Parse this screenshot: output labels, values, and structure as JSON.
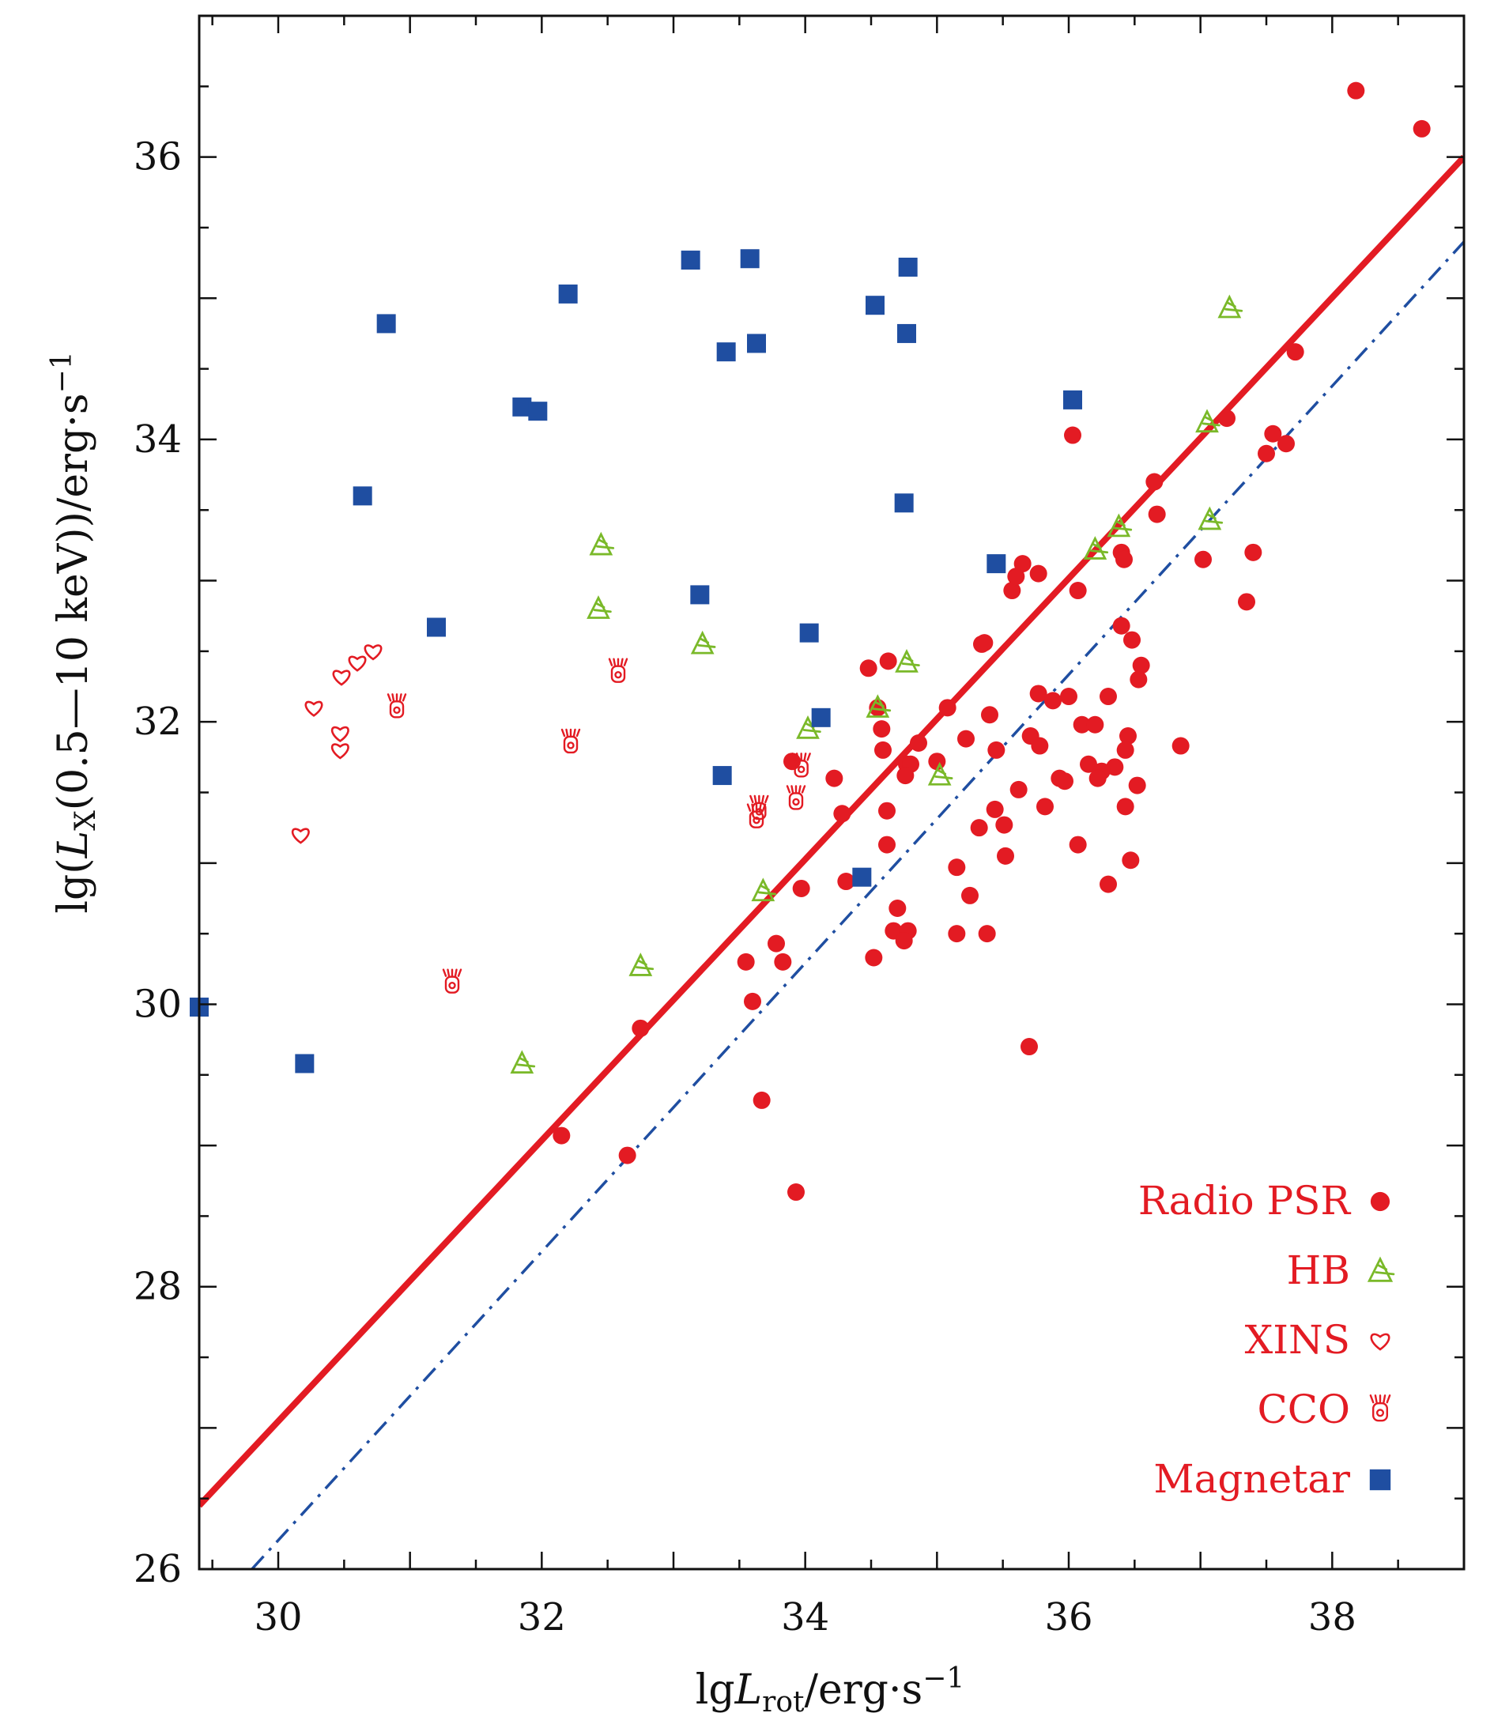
{
  "chart_data": {
    "type": "scatter",
    "xlabel_parts": {
      "lg": "lg",
      "L": "L",
      "sub": "rot",
      "unit": "/erg·s",
      "sup": "−1"
    },
    "ylabel_parts": {
      "pre": "lg(",
      "L": "L",
      "sub": "X",
      "mid": "(0.5—10 keV))/erg·s",
      "sup": "−1"
    },
    "xlim": [
      29.4,
      39.0
    ],
    "ylim": [
      26,
      37
    ],
    "x_ticks": [
      "30",
      "32",
      "34",
      "36",
      "38"
    ],
    "x_tick_values": [
      30,
      32,
      34,
      36,
      38
    ],
    "y_ticks": [
      "26",
      "28",
      "30",
      "32",
      "34",
      "36"
    ],
    "y_tick_values": [
      26,
      28,
      30,
      32,
      34,
      36
    ],
    "lines": [
      {
        "name": "fit",
        "style": "solid",
        "color": "#e31b23",
        "x": [
          29.4,
          39.0
        ],
        "y": [
          26.45,
          36.0
        ]
      },
      {
        "name": "reference",
        "style": "dash-dot",
        "color": "#1f4ea1",
        "x": [
          29.8,
          39.0
        ],
        "y": [
          26.0,
          35.4
        ]
      }
    ],
    "legend": {
      "position": "bottom-right",
      "entries": [
        {
          "label": "Radio PSR",
          "marker": "circle",
          "color": "#e31b23"
        },
        {
          "label": "HB",
          "marker": "hb",
          "color": "#7ab929"
        },
        {
          "label": "XINS",
          "marker": "heart",
          "color": "#e31b23"
        },
        {
          "label": "CCO",
          "marker": "cco",
          "color": "#e31b23"
        },
        {
          "label": "Magnetar",
          "marker": "square",
          "color": "#1f4ea1"
        }
      ]
    },
    "series": [
      {
        "name": "Radio PSR",
        "marker": "circle",
        "color": "#e31b23",
        "x": [
          38.18,
          38.68,
          37.72,
          37.2,
          37.55,
          37.65,
          37.5,
          36.65,
          36.67,
          36.03,
          37.4,
          37.35,
          37.02,
          36.4,
          36.42,
          35.65,
          35.57,
          35.6,
          35.77,
          36.07,
          36.4,
          36.48,
          36.55,
          36.53,
          35.34,
          35.36,
          34.63,
          34.48,
          34.55,
          35.08,
          35.77,
          36.0,
          36.1,
          36.2,
          36.45,
          36.43,
          36.3,
          35.88,
          34.86,
          34.58,
          34.77,
          35.0,
          35.45,
          35.71,
          35.93,
          35.97,
          36.15,
          36.35,
          36.25,
          36.22,
          36.52,
          36.43,
          36.85,
          35.32,
          35.22,
          35.44,
          35.62,
          35.82,
          35.51,
          36.07,
          35.15,
          35.25,
          35.15,
          35.38,
          36.3,
          36.47,
          34.22,
          34.28,
          34.31,
          34.62,
          34.7,
          34.67,
          34.78,
          34.75,
          34.52,
          33.9,
          33.97,
          33.78,
          33.83,
          33.55,
          33.6,
          32.75,
          32.15,
          32.65,
          33.67,
          33.93,
          35.7,
          35.52,
          35.4,
          35.78,
          34.62,
          34.59,
          34.8,
          34.76
        ],
        "y": [
          36.47,
          36.2,
          34.62,
          34.15,
          34.04,
          33.97,
          33.9,
          33.7,
          33.47,
          34.03,
          33.2,
          32.85,
          33.15,
          33.2,
          33.15,
          33.12,
          32.93,
          33.03,
          33.05,
          32.93,
          32.68,
          32.58,
          32.4,
          32.3,
          32.55,
          32.56,
          32.43,
          32.38,
          32.1,
          32.1,
          32.2,
          32.18,
          31.98,
          31.98,
          31.9,
          31.8,
          32.18,
          32.15,
          31.85,
          31.95,
          31.7,
          31.72,
          31.8,
          31.9,
          31.6,
          31.58,
          31.7,
          31.68,
          31.65,
          31.6,
          31.55,
          31.4,
          31.83,
          31.25,
          31.88,
          31.38,
          31.52,
          31.4,
          31.27,
          31.13,
          30.97,
          30.77,
          30.5,
          30.5,
          30.85,
          31.02,
          31.6,
          31.35,
          30.87,
          31.13,
          30.68,
          30.52,
          30.52,
          30.45,
          30.33,
          31.72,
          30.82,
          30.43,
          30.3,
          30.3,
          30.02,
          29.83,
          29.07,
          28.93,
          29.32,
          28.67,
          29.7,
          31.05,
          32.05,
          31.83,
          31.37,
          31.8,
          31.7,
          31.62
        ]
      },
      {
        "name": "HB",
        "marker": "hb",
        "color": "#7ab929",
        "x": [
          37.22,
          37.05,
          37.07,
          36.38,
          36.2,
          32.45,
          32.43,
          33.22,
          34.77,
          34.55,
          34.02,
          35.02,
          33.68,
          32.75,
          31.85
        ],
        "y": [
          34.93,
          34.12,
          33.43,
          33.38,
          33.22,
          33.25,
          32.8,
          32.55,
          32.42,
          32.1,
          31.95,
          31.62,
          30.8,
          30.27,
          29.58
        ]
      },
      {
        "name": "XINS",
        "marker": "heart",
        "color": "#e31b23",
        "x": [
          30.72,
          30.6,
          30.48,
          30.27,
          30.47,
          30.47,
          30.17
        ],
        "y": [
          32.5,
          32.42,
          32.32,
          32.1,
          31.92,
          31.8,
          31.2
        ]
      },
      {
        "name": "CCO",
        "marker": "cco",
        "color": "#e31b23",
        "x": [
          30.9,
          32.58,
          32.22,
          33.97,
          33.93,
          33.65,
          33.63,
          31.32
        ],
        "y": [
          32.1,
          32.35,
          31.85,
          31.68,
          31.45,
          31.38,
          31.32,
          30.15
        ]
      },
      {
        "name": "Magnetar",
        "marker": "square",
        "color": "#1f4ea1",
        "x": [
          33.13,
          33.58,
          34.78,
          32.2,
          34.53,
          30.82,
          34.77,
          33.63,
          33.4,
          31.85,
          31.97,
          36.03,
          30.64,
          34.75,
          35.45,
          33.2,
          31.2,
          34.03,
          34.12,
          33.37,
          34.43,
          29.4,
          30.2
        ],
        "y": [
          35.27,
          35.28,
          35.22,
          35.03,
          34.95,
          34.82,
          34.75,
          34.68,
          34.62,
          34.23,
          34.2,
          34.28,
          33.6,
          33.55,
          33.12,
          32.9,
          32.67,
          32.63,
          32.03,
          31.62,
          30.9,
          29.98,
          29.58
        ]
      }
    ]
  }
}
